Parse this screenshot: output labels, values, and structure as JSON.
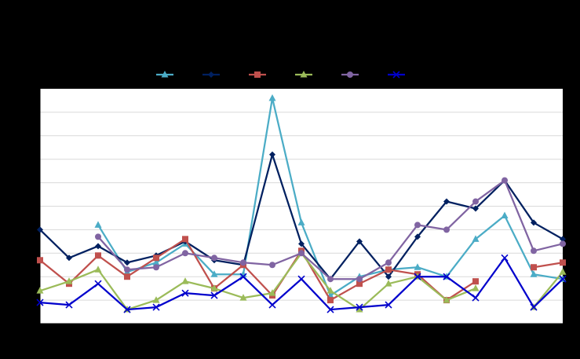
{
  "chart_data": {
    "type": "line",
    "title": "",
    "xlabel": "",
    "ylabel": "",
    "x": [
      1,
      2,
      3,
      4,
      5,
      6,
      7,
      8,
      9,
      10,
      11,
      12,
      13,
      14,
      15,
      16,
      17,
      18,
      19
    ],
    "ylim": [
      0,
      10
    ],
    "grid": true,
    "legend_position": "top",
    "colors": {
      "page_background": "#000000",
      "plot_background": "#ffffff",
      "gridline": "#d9d9d9",
      "axis": "#000000"
    },
    "series": [
      {
        "color": "#4bacc6",
        "marker": "triangle",
        "values": [
          null,
          null,
          4.2,
          2.2,
          2.6,
          3.4,
          2.1,
          2.1,
          9.6,
          4.3,
          1.2,
          2.0,
          2.3,
          2.4,
          2.0,
          3.6,
          4.6,
          2.1,
          1.9
        ]
      },
      {
        "color": "#002060",
        "marker": "diamond",
        "values": [
          4.0,
          2.8,
          3.3,
          2.6,
          2.9,
          3.5,
          2.7,
          2.5,
          7.2,
          3.4,
          1.9,
          3.5,
          2.0,
          3.7,
          5.2,
          4.9,
          6.1,
          4.3,
          3.6
        ]
      },
      {
        "color": "#c0504d",
        "marker": "square",
        "values": [
          2.7,
          1.7,
          2.9,
          2.0,
          2.8,
          3.6,
          1.5,
          2.5,
          1.2,
          3.1,
          1.0,
          1.7,
          2.3,
          2.1,
          1.0,
          1.8,
          null,
          2.4,
          2.6
        ]
      },
      {
        "color": "#9bbb59",
        "marker": "triangle",
        "values": [
          1.4,
          1.8,
          2.3,
          0.6,
          1.0,
          1.8,
          1.5,
          1.1,
          1.3,
          3.0,
          1.4,
          0.6,
          1.7,
          2.0,
          1.0,
          1.5,
          null,
          0.7,
          2.2
        ]
      },
      {
        "color": "#8064a2",
        "marker": "circle",
        "values": [
          null,
          null,
          3.7,
          2.3,
          2.4,
          3.0,
          2.8,
          2.6,
          2.5,
          3.0,
          1.9,
          1.9,
          2.6,
          4.2,
          4.0,
          5.2,
          6.1,
          3.1,
          3.4
        ]
      },
      {
        "color": "#0000cc",
        "marker": "x",
        "values": [
          0.9,
          0.8,
          1.7,
          0.6,
          0.7,
          1.3,
          1.2,
          2.0,
          0.8,
          1.9,
          0.6,
          0.7,
          0.8,
          2.0,
          2.0,
          1.1,
          2.8,
          0.7,
          1.9
        ]
      }
    ]
  }
}
